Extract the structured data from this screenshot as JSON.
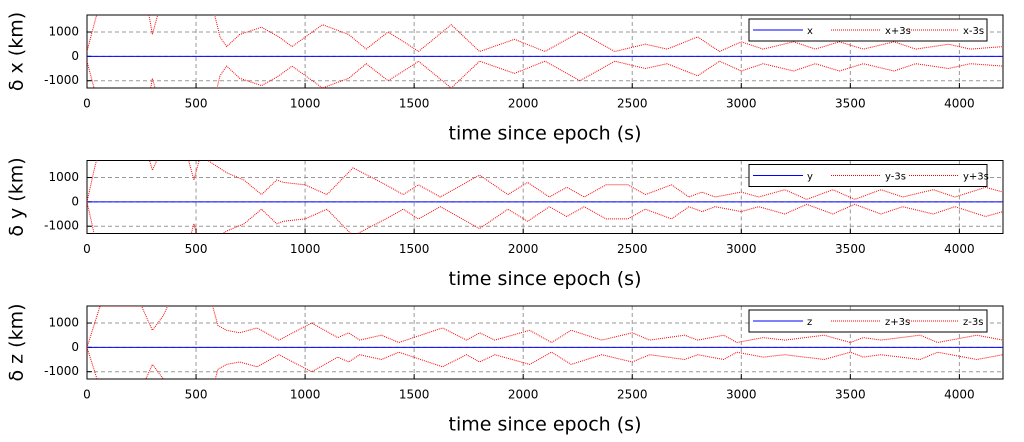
{
  "chart_data": [
    {
      "type": "line",
      "xlabel": "time since epoch (s)",
      "ylabel": "δ x (km)",
      "x": [
        0,
        50,
        280,
        300,
        330,
        580,
        610,
        640,
        700,
        800,
        880,
        940,
        1080,
        1200,
        1280,
        1380,
        1470,
        1520,
        1670,
        1800,
        1960,
        2100,
        2260,
        2420,
        2560,
        2660,
        2800,
        2900,
        3000,
        3100,
        3240,
        3340,
        3450,
        3560,
        3700,
        3800,
        3950,
        4050,
        4200
      ],
      "series": [
        {
          "name": "x",
          "color": "#0000ff",
          "values": [
            0,
            0,
            0,
            0,
            0,
            0,
            0,
            0,
            0,
            0,
            0,
            0,
            0,
            0,
            0,
            0,
            0,
            0,
            0,
            0,
            0,
            0,
            0,
            0,
            0,
            0,
            0,
            0,
            0,
            0,
            0,
            0,
            0,
            0,
            0,
            0,
            0,
            0,
            0
          ]
        },
        {
          "name": "x+3s",
          "color": "#ff0000",
          "values": [
            200,
            1900,
            1900,
            900,
            1900,
            1900,
            800,
            400,
            900,
            1200,
            800,
            400,
            1300,
            900,
            300,
            1000,
            500,
            200,
            1300,
            200,
            700,
            200,
            1000,
            200,
            500,
            300,
            800,
            200,
            600,
            300,
            600,
            300,
            600,
            300,
            600,
            300,
            500,
            300,
            400
          ]
        },
        {
          "name": "x-3s",
          "color": "#ff0000",
          "values": [
            -200,
            -1900,
            -1900,
            -900,
            -1900,
            -1900,
            -800,
            -400,
            -900,
            -1200,
            -800,
            -400,
            -1300,
            -900,
            -300,
            -1000,
            -500,
            -200,
            -1300,
            -200,
            -700,
            -200,
            -1000,
            -200,
            -500,
            -300,
            -800,
            -200,
            -600,
            -300,
            -600,
            -300,
            -600,
            -300,
            -600,
            -300,
            -500,
            -300,
            -400
          ]
        }
      ],
      "xlim": [
        0,
        4200
      ],
      "ylim": [
        -1300,
        1700
      ],
      "xticks": [
        0,
        500,
        1000,
        1500,
        2000,
        2500,
        3000,
        3500,
        4000
      ],
      "yticks": [
        -1000,
        0,
        1000
      ],
      "grid": true,
      "legend": "upper right"
    },
    {
      "type": "line",
      "xlabel": "time since epoch (s)",
      "ylabel": "δ y (km)",
      "x": [
        0,
        40,
        60,
        280,
        300,
        330,
        460,
        490,
        520,
        640,
        720,
        800,
        870,
        900,
        1000,
        1100,
        1220,
        1370,
        1450,
        1520,
        1620,
        1800,
        1930,
        2020,
        2120,
        2200,
        2280,
        2380,
        2480,
        2560,
        2680,
        2760,
        2820,
        2880,
        3000,
        3080,
        3200,
        3300,
        3420,
        3520,
        3640,
        3740,
        3880,
        3980,
        4120,
        4200
      ],
      "series": [
        {
          "name": "y",
          "color": "#0000ff",
          "values": [
            0,
            0,
            0,
            0,
            0,
            0,
            0,
            0,
            0,
            0,
            0,
            0,
            0,
            0,
            0,
            0,
            0,
            0,
            0,
            0,
            0,
            0,
            0,
            0,
            0,
            0,
            0,
            0,
            0,
            0,
            0,
            0,
            0,
            0,
            0,
            0,
            0,
            0,
            0,
            0,
            0,
            0,
            0,
            0,
            0,
            0
          ]
        },
        {
          "name": "y-3s",
          "color": "#ff0000",
          "values": [
            0,
            -1600,
            -1900,
            -1900,
            -1300,
            -1900,
            -1900,
            -900,
            -1900,
            -1200,
            -900,
            -300,
            -900,
            -800,
            -700,
            -300,
            -1400,
            -700,
            -300,
            -700,
            -200,
            -1100,
            -300,
            -800,
            -200,
            -600,
            -200,
            -700,
            -700,
            -300,
            -700,
            -200,
            -400,
            -200,
            -400,
            -200,
            -500,
            -100,
            -500,
            -100,
            -500,
            -200,
            -500,
            -200,
            -600,
            -400
          ]
        },
        {
          "name": "y+3s",
          "color": "#ff0000",
          "values": [
            0,
            1600,
            1900,
            1900,
            1300,
            1900,
            1900,
            900,
            1900,
            1200,
            900,
            300,
            900,
            800,
            700,
            300,
            1400,
            700,
            300,
            700,
            200,
            1100,
            300,
            800,
            200,
            600,
            200,
            700,
            700,
            300,
            700,
            200,
            400,
            200,
            400,
            200,
            500,
            100,
            500,
            100,
            500,
            200,
            500,
            200,
            600,
            400
          ]
        }
      ],
      "xlim": [
        0,
        4200
      ],
      "ylim": [
        -1300,
        1700
      ],
      "xticks": [
        0,
        500,
        1000,
        1500,
        2000,
        2500,
        3000,
        3500,
        4000
      ],
      "yticks": [
        -1000,
        0,
        1000
      ],
      "grid": true,
      "legend": "upper right"
    },
    {
      "type": "line",
      "xlabel": "time since epoch (s)",
      "ylabel": "δ z (km)",
      "x": [
        0,
        60,
        250,
        300,
        350,
        380,
        570,
        600,
        640,
        700,
        780,
        880,
        1030,
        1150,
        1200,
        1250,
        1350,
        1430,
        1630,
        1740,
        1800,
        1870,
        2030,
        2130,
        2220,
        2360,
        2500,
        2580,
        2740,
        2800,
        2920,
        2980,
        3100,
        3200,
        3380,
        3500,
        3560,
        3640,
        3820,
        3900,
        4080,
        4200
      ],
      "series": [
        {
          "name": "z",
          "color": "#0000ff",
          "values": [
            0,
            0,
            0,
            0,
            0,
            0,
            0,
            0,
            0,
            0,
            0,
            0,
            0,
            0,
            0,
            0,
            0,
            0,
            0,
            0,
            0,
            0,
            0,
            0,
            0,
            0,
            0,
            0,
            0,
            0,
            0,
            0,
            0,
            0,
            0,
            0,
            0,
            0,
            0,
            0,
            0,
            0
          ]
        },
        {
          "name": "z+3s",
          "color": "#ff0000",
          "values": [
            0,
            1700,
            1700,
            700,
            1300,
            1900,
            1900,
            900,
            700,
            600,
            800,
            300,
            1000,
            400,
            600,
            300,
            500,
            200,
            800,
            300,
            600,
            300,
            700,
            200,
            700,
            300,
            600,
            300,
            500,
            300,
            500,
            200,
            400,
            300,
            500,
            200,
            400,
            300,
            500,
            200,
            500,
            300
          ]
        },
        {
          "name": "z-3s",
          "color": "#ff0000",
          "values": [
            0,
            -1700,
            -1700,
            -700,
            -1300,
            -1900,
            -1900,
            -900,
            -700,
            -600,
            -800,
            -300,
            -1000,
            -400,
            -600,
            -300,
            -500,
            -200,
            -800,
            -300,
            -600,
            -300,
            -700,
            -200,
            -700,
            -300,
            -600,
            -300,
            -500,
            -300,
            -500,
            -200,
            -400,
            -300,
            -500,
            -200,
            -400,
            -300,
            -500,
            -200,
            -500,
            -300
          ]
        }
      ],
      "xlim": [
        0,
        4200
      ],
      "ylim": [
        -1300,
        1700
      ],
      "xticks": [
        0,
        500,
        1000,
        1500,
        2000,
        2500,
        3000,
        3500,
        4000
      ],
      "yticks": [
        -1000,
        0,
        1000
      ],
      "grid": true,
      "legend": "upper right"
    }
  ]
}
